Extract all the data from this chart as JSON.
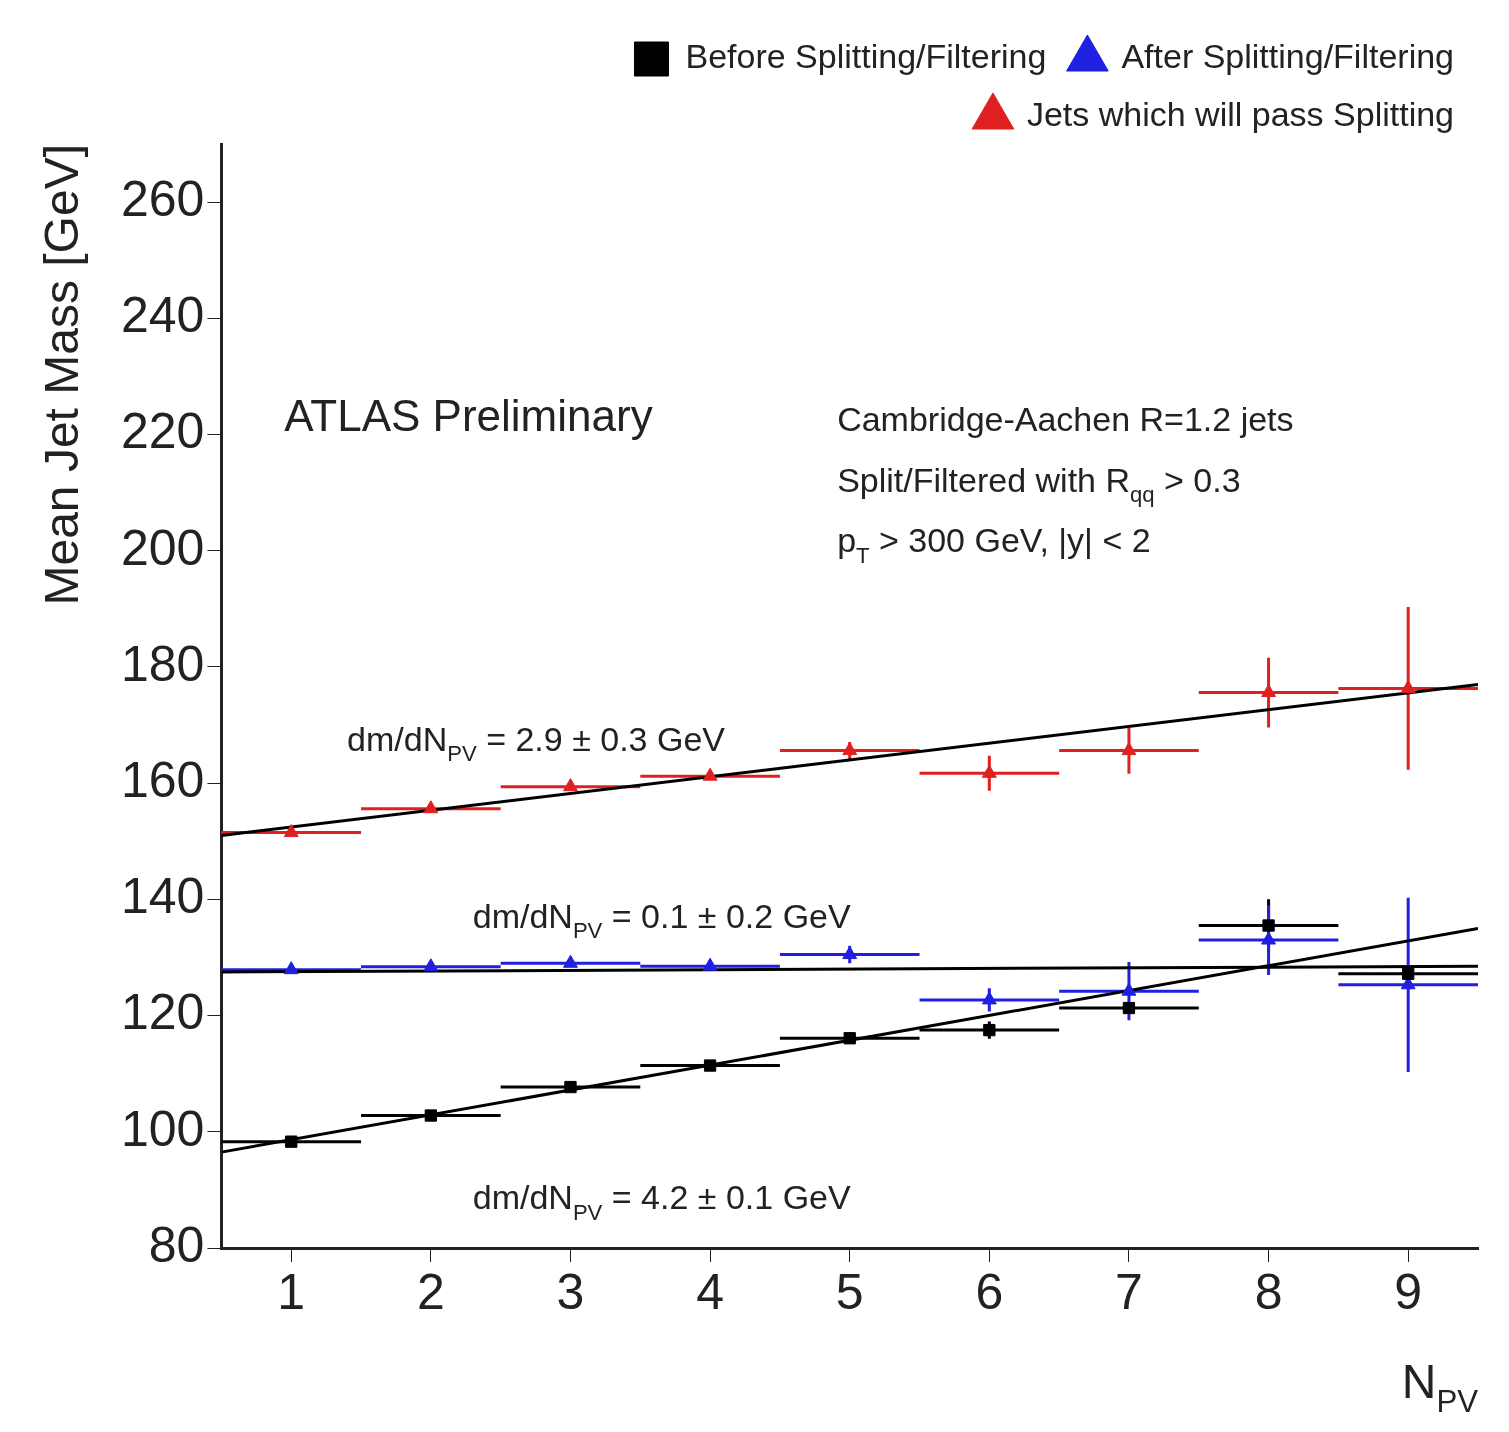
{
  "chart_data": {
    "type": "scatter",
    "xlabel": "N$_{PV}$",
    "ylabel": "Mean Jet Mass [GeV]",
    "xlim": [
      0.5,
      9.5
    ],
    "xticks": [
      1,
      2,
      3,
      4,
      5,
      6,
      7,
      8,
      9
    ],
    "ylim": [
      80,
      270
    ],
    "yticks": [
      80,
      100,
      120,
      140,
      160,
      180,
      200,
      220,
      240,
      260
    ],
    "grid": false,
    "legend": "top right",
    "series": [
      {
        "name": "Before Splitting/Filtering",
        "color": "#000000",
        "marker": "square",
        "x": [
          1,
          2,
          3,
          4,
          5,
          6,
          7,
          8,
          9
        ],
        "values": [
          98.3,
          102.8,
          107.7,
          111.4,
          116.1,
          117.5,
          121.3,
          135.5,
          127.2
        ],
        "errors": [
          null,
          null,
          null,
          null,
          null,
          1.5,
          null,
          4.5,
          1.5
        ],
        "xerrors": [
          0.5,
          0.5,
          0.5,
          0.5,
          0.5,
          0.5,
          0.5,
          0.5,
          0.5
        ]
      },
      {
        "name": "After Splitting/Filtering",
        "color": "#2020e0",
        "marker": "triangle",
        "x": [
          1,
          2,
          3,
          4,
          5,
          6,
          7,
          8,
          9
        ],
        "values": [
          127.9,
          128.4,
          129,
          128.5,
          130.5,
          122.7,
          124.2,
          133,
          125.3
        ],
        "errors": [
          null,
          null,
          null,
          null,
          1.5,
          2,
          5,
          6,
          15
        ],
        "xerrors": [
          0.5,
          0.5,
          0.5,
          0.5,
          0.5,
          0.5,
          0.5,
          0.5,
          0.5
        ]
      },
      {
        "name": "Jets which will pass Splitting",
        "color": "#e02020",
        "marker": "triangle",
        "x": [
          1,
          2,
          3,
          4,
          5,
          6,
          7,
          8,
          9
        ],
        "values": [
          151.5,
          155.6,
          159.4,
          161.2,
          165.6,
          161.7,
          165.6,
          175.6,
          176.3
        ],
        "errors": [
          null,
          null,
          null,
          null,
          1.5,
          3,
          4,
          6,
          14
        ],
        "xerrors": [
          0.5,
          0.5,
          0.5,
          0.5,
          0.5,
          0.5,
          0.5,
          0.5,
          0.5
        ]
      },
      {
        "type": "line",
        "color": "#000000",
        "x": [
          0.5,
          9.5
        ],
        "values": [
          151,
          177
        ]
      },
      {
        "type": "line",
        "color": "#000000",
        "x": [
          0.5,
          9.5
        ],
        "values": [
          127.5,
          128.5
        ]
      },
      {
        "type": "line",
        "color": "#000000",
        "x": [
          0.5,
          9.5
        ],
        "values": [
          96.5,
          135
        ]
      }
    ],
    "annotations": [
      "ATLAS Preliminary",
      "Cambridge-Aachen R=1.2 jets",
      "Split/Filtered with R$_{qq}$ > 0.3",
      "p$_{T}$ > 300 GeV, |y| < 2",
      "dm/dN$_{PV}$ = 2.9 ± 0.3 GeV",
      "dm/dN$_{PV}$ = 0.1 ± 0.2 GeV",
      "dm/dN$_{PV}$ = 4.2 ± 0.1 GeV"
    ]
  }
}
